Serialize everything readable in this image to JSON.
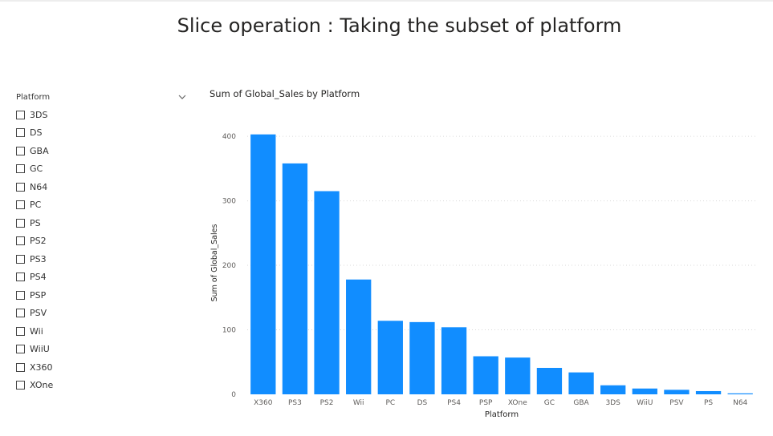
{
  "page": {
    "title": "Slice operation : Taking the subset of platform"
  },
  "slicer": {
    "title": "Platform",
    "items": [
      "3DS",
      "DS",
      "GBA",
      "GC",
      "N64",
      "PC",
      "PS",
      "PS2",
      "PS3",
      "PS4",
      "PSP",
      "PSV",
      "Wii",
      "WiiU",
      "X360",
      "XOne"
    ]
  },
  "chart_data": {
    "type": "bar",
    "title": "Sum of Global_Sales by Platform",
    "xlabel": "Platform",
    "ylabel": "Sum of Global_Sales",
    "categories": [
      "X360",
      "PS3",
      "PS2",
      "Wii",
      "PC",
      "DS",
      "PS4",
      "PSP",
      "XOne",
      "GC",
      "GBA",
      "3DS",
      "WiiU",
      "PSV",
      "PS",
      "N64"
    ],
    "values": [
      403,
      358,
      315,
      178,
      114,
      112,
      104,
      59,
      57,
      41,
      34,
      14,
      9,
      7,
      5,
      1.5
    ],
    "ylim": [
      0,
      420
    ],
    "yticks": [
      0,
      100,
      200,
      300,
      400
    ],
    "grid": true,
    "bar_color": "#118DFF"
  }
}
